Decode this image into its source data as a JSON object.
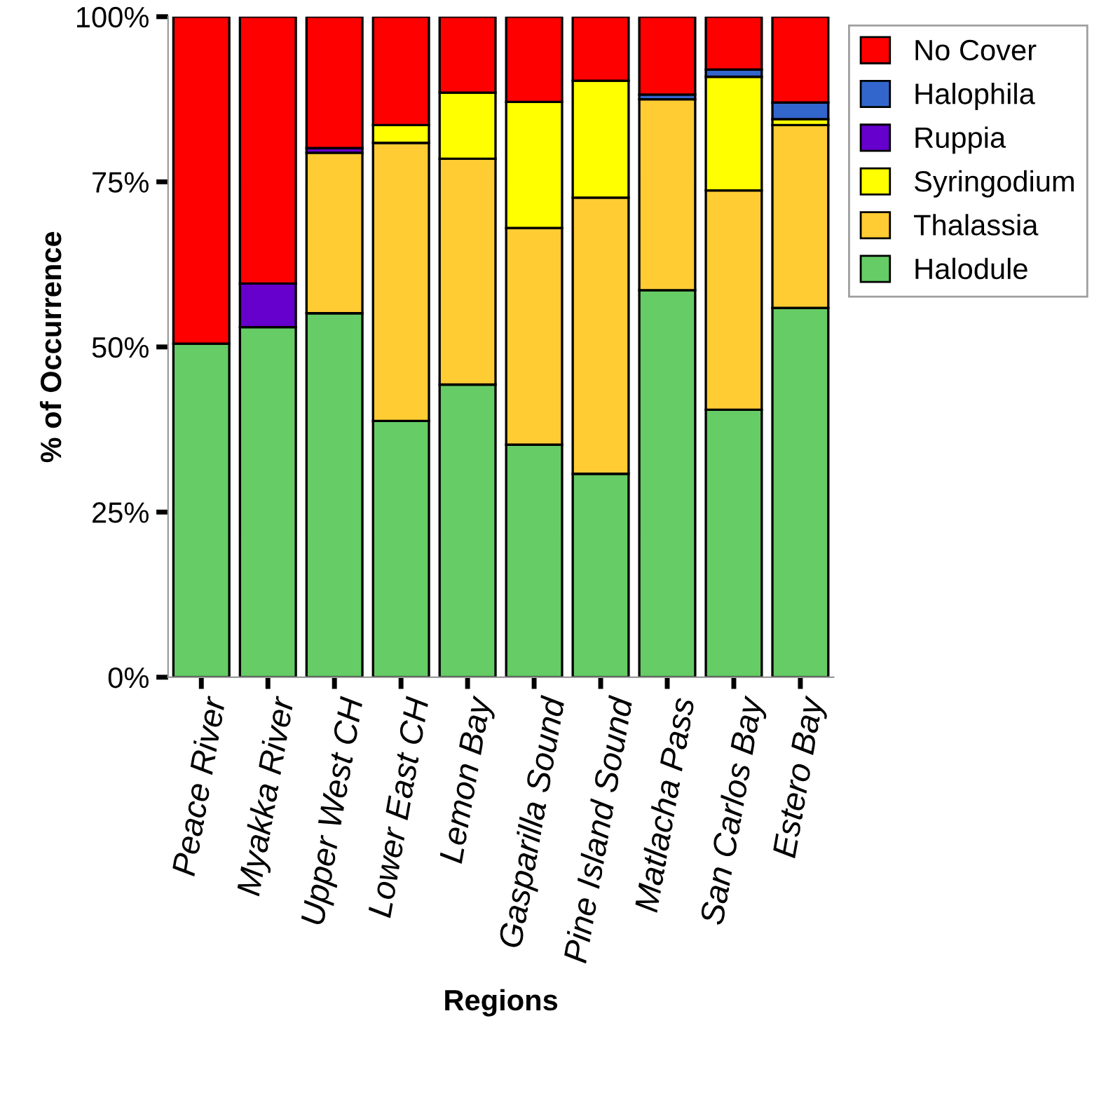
{
  "chart_data": {
    "type": "bar",
    "stacked": true,
    "xlabel": "Regions",
    "ylabel": "% of Occurrence",
    "categories": [
      "Peace River",
      "Myakka River",
      "Upper West CH",
      "Lower East CH",
      "Lemon Bay",
      "Gasparilla Sound",
      "Pine Island Sound",
      "Matlacha Pass",
      "San Carlos Bay",
      "Estero Bay"
    ],
    "series": [
      {
        "name": "Halodule",
        "color": "#66cc66",
        "values": [
          50.5,
          53.0,
          55.1,
          38.8,
          44.3,
          35.2,
          30.8,
          58.6,
          40.5,
          55.9
        ]
      },
      {
        "name": "Thalassia",
        "color": "#ffcc33",
        "values": [
          null,
          null,
          24.3,
          42.1,
          34.2,
          32.8,
          41.8,
          28.9,
          33.2,
          27.7
        ]
      },
      {
        "name": "Syringodium",
        "color": "#ffff00",
        "values": [
          null,
          null,
          null,
          2.7,
          10.0,
          19.1,
          17.7,
          null,
          17.2,
          0.9
        ]
      },
      {
        "name": "Ruppia",
        "color": "#6600cc",
        "values": [
          null,
          6.6,
          0.7,
          null,
          null,
          null,
          null,
          null,
          null,
          null
        ]
      },
      {
        "name": "Halophila",
        "color": "#3366cc",
        "values": [
          null,
          null,
          null,
          null,
          null,
          null,
          null,
          0.7,
          1.1,
          2.5
        ]
      },
      {
        "name": "No Cover",
        "color": "#ff0000",
        "values": [
          49.5,
          40.4,
          19.9,
          16.4,
          11.5,
          12.9,
          9.7,
          11.8,
          8.0,
          13.0
        ]
      }
    ],
    "ylim": [
      0,
      100
    ],
    "yticks": [
      {
        "value": 0,
        "label": "0%"
      },
      {
        "value": 25,
        "label": "25%"
      },
      {
        "value": 50,
        "label": "50%"
      },
      {
        "value": 75,
        "label": "75%"
      },
      {
        "value": 100,
        "label": "100%"
      }
    ],
    "grid": false,
    "legend": "top right"
  }
}
